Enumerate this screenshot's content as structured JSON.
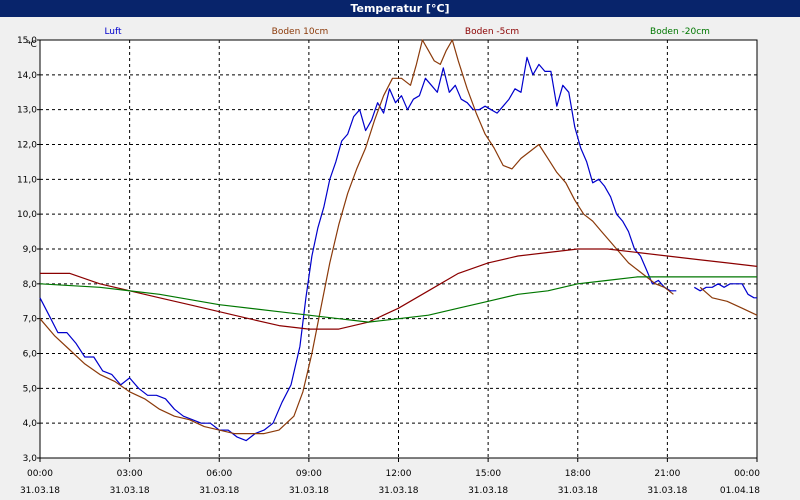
{
  "window": {
    "title": "Temperatur [°C]"
  },
  "chart_data": {
    "type": "line",
    "title": "Temperatur [°C]",
    "ylabel": "°C",
    "xlabel": "",
    "ylim": [
      3.0,
      15.0
    ],
    "xlim_hours": [
      0,
      24
    ],
    "grid": true,
    "legend_placement": "top",
    "y_ticks": [
      "3,0",
      "4,0",
      "5,0",
      "6,0",
      "7,0",
      "8,0",
      "9,0",
      "10,0",
      "11,0",
      "12,0",
      "13,0",
      "14,0",
      "15,0"
    ],
    "x_ticks": [
      {
        "h": 0,
        "time": "00:00",
        "date": "31.03.18"
      },
      {
        "h": 3,
        "time": "03:00",
        "date": "31.03.18"
      },
      {
        "h": 6,
        "time": "06:00",
        "date": "31.03.18"
      },
      {
        "h": 9,
        "time": "09:00",
        "date": "31.03.18"
      },
      {
        "h": 12,
        "time": "12:00",
        "date": "31.03.18"
      },
      {
        "h": 15,
        "time": "15:00",
        "date": "31.03.18"
      },
      {
        "h": 18,
        "time": "18:00",
        "date": "31.03.18"
      },
      {
        "h": 21,
        "time": "21:00",
        "date": "31.03.18"
      },
      {
        "h": 24,
        "time": "00:00",
        "date": "01.04.18"
      }
    ],
    "series": [
      {
        "name": "Luft",
        "color": "#0000cc",
        "points": [
          [
            0.0,
            7.6
          ],
          [
            0.3,
            7.1
          ],
          [
            0.6,
            6.6
          ],
          [
            0.9,
            6.6
          ],
          [
            1.2,
            6.3
          ],
          [
            1.5,
            5.9
          ],
          [
            1.8,
            5.9
          ],
          [
            2.1,
            5.5
          ],
          [
            2.4,
            5.4
          ],
          [
            2.7,
            5.1
          ],
          [
            3.0,
            5.3
          ],
          [
            3.3,
            5.0
          ],
          [
            3.6,
            4.8
          ],
          [
            3.9,
            4.8
          ],
          [
            4.2,
            4.7
          ],
          [
            4.5,
            4.4
          ],
          [
            4.8,
            4.2
          ],
          [
            5.1,
            4.1
          ],
          [
            5.4,
            4.0
          ],
          [
            5.7,
            4.0
          ],
          [
            6.0,
            3.8
          ],
          [
            6.3,
            3.8
          ],
          [
            6.6,
            3.6
          ],
          [
            6.9,
            3.5
          ],
          [
            7.2,
            3.7
          ],
          [
            7.5,
            3.8
          ],
          [
            7.8,
            4.0
          ],
          [
            8.1,
            4.6
          ],
          [
            8.4,
            5.1
          ],
          [
            8.7,
            6.2
          ],
          [
            8.9,
            7.6
          ],
          [
            9.1,
            8.8
          ],
          [
            9.3,
            9.6
          ],
          [
            9.5,
            10.2
          ],
          [
            9.7,
            11.0
          ],
          [
            9.9,
            11.5
          ],
          [
            10.1,
            12.1
          ],
          [
            10.3,
            12.3
          ],
          [
            10.5,
            12.8
          ],
          [
            10.7,
            13.0
          ],
          [
            10.9,
            12.4
          ],
          [
            11.1,
            12.7
          ],
          [
            11.3,
            13.2
          ],
          [
            11.5,
            12.9
          ],
          [
            11.7,
            13.6
          ],
          [
            11.9,
            13.2
          ],
          [
            12.1,
            13.4
          ],
          [
            12.3,
            13.0
          ],
          [
            12.5,
            13.3
          ],
          [
            12.7,
            13.4
          ],
          [
            12.9,
            13.9
          ],
          [
            13.1,
            13.7
          ],
          [
            13.3,
            13.5
          ],
          [
            13.5,
            14.2
          ],
          [
            13.7,
            13.5
          ],
          [
            13.9,
            13.7
          ],
          [
            14.1,
            13.3
          ],
          [
            14.3,
            13.2
          ],
          [
            14.5,
            13.0
          ],
          [
            14.7,
            13.0
          ],
          [
            14.9,
            13.1
          ],
          [
            15.1,
            13.0
          ],
          [
            15.3,
            12.9
          ],
          [
            15.5,
            13.1
          ],
          [
            15.7,
            13.3
          ],
          [
            15.9,
            13.6
          ],
          [
            16.1,
            13.5
          ],
          [
            16.3,
            14.5
          ],
          [
            16.5,
            14.0
          ],
          [
            16.7,
            14.3
          ],
          [
            16.9,
            14.1
          ],
          [
            17.1,
            14.1
          ],
          [
            17.3,
            13.1
          ],
          [
            17.5,
            13.7
          ],
          [
            17.7,
            13.5
          ],
          [
            17.9,
            12.5
          ],
          [
            18.1,
            11.9
          ],
          [
            18.3,
            11.5
          ],
          [
            18.5,
            10.9
          ],
          [
            18.7,
            11.0
          ],
          [
            18.9,
            10.8
          ],
          [
            19.1,
            10.5
          ],
          [
            19.3,
            10.0
          ],
          [
            19.5,
            9.8
          ],
          [
            19.7,
            9.5
          ],
          [
            19.9,
            9.0
          ],
          [
            20.1,
            8.8
          ],
          [
            20.3,
            8.4
          ],
          [
            20.5,
            8.0
          ],
          [
            20.7,
            8.1
          ],
          [
            20.9,
            7.9
          ],
          [
            21.1,
            7.8
          ],
          [
            21.3,
            7.8
          ],
          [
            21.5,
            null
          ],
          [
            21.7,
            null
          ],
          [
            21.9,
            7.9
          ],
          [
            22.1,
            7.8
          ],
          [
            22.3,
            7.9
          ],
          [
            22.5,
            7.9
          ],
          [
            22.7,
            8.0
          ],
          [
            22.9,
            7.9
          ],
          [
            23.1,
            8.0
          ],
          [
            23.3,
            8.0
          ],
          [
            23.5,
            8.0
          ],
          [
            23.7,
            7.7
          ],
          [
            23.9,
            7.6
          ],
          [
            24.0,
            7.6
          ]
        ]
      },
      {
        "name": "Boden 10cm",
        "color": "#8b3a0a",
        "points": [
          [
            0.0,
            7.0
          ],
          [
            0.5,
            6.5
          ],
          [
            1.0,
            6.1
          ],
          [
            1.5,
            5.7
          ],
          [
            2.0,
            5.4
          ],
          [
            2.5,
            5.2
          ],
          [
            3.0,
            4.9
          ],
          [
            3.5,
            4.7
          ],
          [
            4.0,
            4.4
          ],
          [
            4.5,
            4.2
          ],
          [
            5.0,
            4.1
          ],
          [
            5.5,
            3.9
          ],
          [
            6.0,
            3.8
          ],
          [
            6.5,
            3.7
          ],
          [
            7.0,
            3.7
          ],
          [
            7.5,
            3.7
          ],
          [
            8.0,
            3.8
          ],
          [
            8.5,
            4.2
          ],
          [
            8.8,
            4.9
          ],
          [
            9.1,
            6.0
          ],
          [
            9.4,
            7.3
          ],
          [
            9.7,
            8.6
          ],
          [
            10.0,
            9.7
          ],
          [
            10.3,
            10.6
          ],
          [
            10.6,
            11.3
          ],
          [
            10.9,
            11.9
          ],
          [
            11.2,
            12.7
          ],
          [
            11.5,
            13.4
          ],
          [
            11.8,
            13.9
          ],
          [
            12.1,
            13.9
          ],
          [
            12.4,
            13.7
          ],
          [
            12.6,
            14.3
          ],
          [
            12.8,
            15.0
          ],
          [
            13.0,
            14.7
          ],
          [
            13.2,
            14.4
          ],
          [
            13.4,
            14.3
          ],
          [
            13.6,
            14.7
          ],
          [
            13.8,
            15.0
          ],
          [
            14.0,
            14.4
          ],
          [
            14.3,
            13.6
          ],
          [
            14.6,
            12.9
          ],
          [
            14.9,
            12.3
          ],
          [
            15.2,
            11.9
          ],
          [
            15.5,
            11.4
          ],
          [
            15.8,
            11.3
          ],
          [
            16.1,
            11.6
          ],
          [
            16.4,
            11.8
          ],
          [
            16.7,
            12.0
          ],
          [
            17.0,
            11.6
          ],
          [
            17.3,
            11.2
          ],
          [
            17.6,
            10.9
          ],
          [
            17.9,
            10.4
          ],
          [
            18.2,
            10.0
          ],
          [
            18.5,
            9.8
          ],
          [
            18.8,
            9.5
          ],
          [
            19.1,
            9.2
          ],
          [
            19.4,
            8.9
          ],
          [
            19.7,
            8.6
          ],
          [
            20.0,
            8.4
          ],
          [
            20.3,
            8.2
          ],
          [
            20.6,
            8.0
          ],
          [
            20.9,
            7.9
          ],
          [
            21.2,
            7.7
          ],
          [
            21.5,
            null
          ],
          [
            21.8,
            null
          ],
          [
            22.1,
            7.9
          ],
          [
            22.5,
            7.6
          ],
          [
            23.0,
            7.5
          ],
          [
            23.5,
            7.3
          ],
          [
            24.0,
            7.1
          ]
        ]
      },
      {
        "name": "Boden -5cm",
        "color": "#8b0000",
        "points": [
          [
            0.0,
            8.3
          ],
          [
            1.0,
            8.3
          ],
          [
            2.0,
            8.0
          ],
          [
            3.0,
            7.8
          ],
          [
            4.0,
            7.6
          ],
          [
            5.0,
            7.4
          ],
          [
            6.0,
            7.2
          ],
          [
            7.0,
            7.0
          ],
          [
            8.0,
            6.8
          ],
          [
            9.0,
            6.7
          ],
          [
            10.0,
            6.7
          ],
          [
            11.0,
            6.9
          ],
          [
            12.0,
            7.3
          ],
          [
            13.0,
            7.8
          ],
          [
            14.0,
            8.3
          ],
          [
            15.0,
            8.6
          ],
          [
            16.0,
            8.8
          ],
          [
            17.0,
            8.9
          ],
          [
            18.0,
            9.0
          ],
          [
            19.0,
            9.0
          ],
          [
            20.0,
            8.9
          ],
          [
            21.0,
            8.8
          ],
          [
            22.0,
            8.7
          ],
          [
            23.0,
            8.6
          ],
          [
            24.0,
            8.5
          ]
        ]
      },
      {
        "name": "Boden -20cm",
        "color": "#007700",
        "points": [
          [
            0.0,
            8.0
          ],
          [
            2.0,
            7.9
          ],
          [
            4.0,
            7.7
          ],
          [
            6.0,
            7.4
          ],
          [
            8.0,
            7.2
          ],
          [
            10.0,
            7.0
          ],
          [
            11.0,
            6.9
          ],
          [
            12.0,
            7.0
          ],
          [
            13.0,
            7.1
          ],
          [
            14.0,
            7.3
          ],
          [
            15.0,
            7.5
          ],
          [
            16.0,
            7.7
          ],
          [
            17.0,
            7.8
          ],
          [
            18.0,
            8.0
          ],
          [
            19.0,
            8.1
          ],
          [
            20.0,
            8.2
          ],
          [
            21.0,
            8.2
          ],
          [
            22.0,
            8.2
          ],
          [
            23.0,
            8.2
          ],
          [
            24.0,
            8.2
          ]
        ]
      }
    ]
  }
}
